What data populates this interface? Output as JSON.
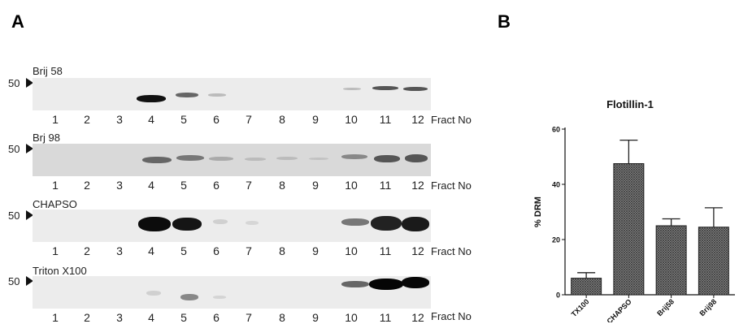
{
  "figure": {
    "panel_a_label": "A",
    "panel_b_label": "B",
    "molecular_weight_marker": "50",
    "lane_axis_label": "Fract No",
    "lane_numbers": [
      "1",
      "2",
      "3",
      "4",
      "5",
      "6",
      "7",
      "8",
      "9",
      "10",
      "11",
      "12"
    ],
    "blots": [
      {
        "detergent": "Brij 58"
      },
      {
        "detergent": "Brj 98"
      },
      {
        "detergent": "CHAPSO"
      },
      {
        "detergent": "Triton X100"
      }
    ]
  },
  "chart_data": {
    "type": "bar",
    "title": "Flotillin-1",
    "xlabel": "",
    "ylabel": "% DRM",
    "categories": [
      "TX100",
      "CHAPSO",
      "Brij58",
      "Brij98"
    ],
    "values": [
      6,
      47.5,
      25,
      24.5
    ],
    "error_upper": [
      8,
      56,
      27.5,
      31.5
    ],
    "ylim": [
      0,
      60
    ],
    "yticks": [
      0,
      20,
      40,
      60
    ],
    "bar_pattern": "crosshatch",
    "grid": false
  }
}
